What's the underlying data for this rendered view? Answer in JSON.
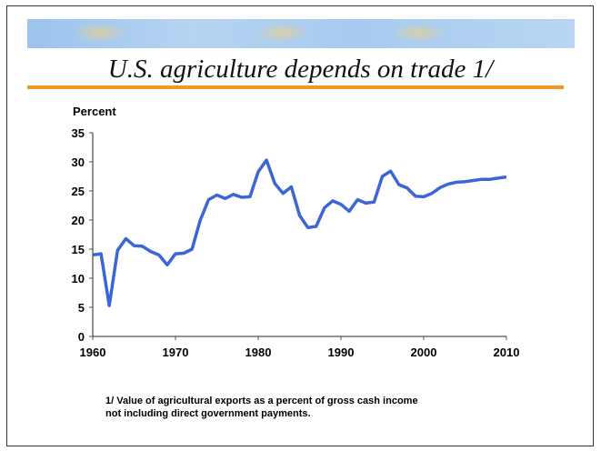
{
  "chart_data": {
    "type": "line",
    "title": "U.S. agriculture depends on trade 1/",
    "ylabel": "Percent",
    "xlabel": "",
    "ylim": [
      0,
      35
    ],
    "xlim": [
      1960,
      2010
    ],
    "yticks": [
      0,
      5,
      10,
      15,
      20,
      25,
      30,
      35
    ],
    "xticks": [
      1960,
      1970,
      1980,
      1990,
      2000,
      2010
    ],
    "x": [
      1960,
      1961,
      1962,
      1963,
      1964,
      1965,
      1966,
      1967,
      1968,
      1969,
      1970,
      1971,
      1972,
      1973,
      1974,
      1975,
      1976,
      1977,
      1978,
      1979,
      1980,
      1981,
      1982,
      1983,
      1984,
      1985,
      1986,
      1987,
      1988,
      1989,
      1990,
      1991,
      1992,
      1993,
      1994,
      1995,
      1996,
      1997,
      1998,
      1999,
      2000,
      2001,
      2002,
      2003,
      2004,
      2005,
      2006,
      2007,
      2008,
      2009,
      2010
    ],
    "series": [
      {
        "name": "Agricultural exports as percent of gross cash income",
        "color": "#3a66d6",
        "values": [
          14,
          14.2,
          5.3,
          14.8,
          16.8,
          15.6,
          15.5,
          14.6,
          14,
          12.3,
          14.2,
          14.3,
          15,
          20,
          23.5,
          24.3,
          23.7,
          24.4,
          23.9,
          24,
          28.3,
          30.3,
          26.3,
          24.6,
          25.7,
          20.8,
          18.7,
          18.9,
          22.1,
          23.3,
          22.7,
          21.5,
          23.5,
          22.9,
          23.1,
          27.5,
          28.4,
          26.1,
          25.5,
          24.1,
          24,
          24.6,
          25.6,
          26.2,
          26.5,
          26.6,
          26.8,
          27,
          27,
          27.2,
          27.4
        ]
      }
    ],
    "grid": false,
    "footnote": [
      "1/ Value of agricultural exports as a percent of gross cash income",
      "not including direct government payments."
    ]
  }
}
